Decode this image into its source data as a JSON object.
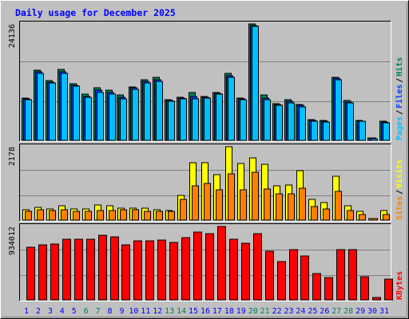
{
  "title": "Daily usage for December 2025",
  "chart_data": [
    {
      "type": "bar",
      "ylim": [
        0,
        24136
      ],
      "yticks": [
        24136
      ],
      "legend_separator": "/",
      "series": [
        {
          "name": "Hits",
          "color": "#00805c",
          "values": [
            8760,
            14550,
            12400,
            14710,
            11740,
            9590,
            10910,
            10410,
            9420,
            11070,
            12560,
            13060,
            8430,
            8930,
            9920,
            9090,
            9920,
            13890,
            8760,
            24136,
            9420,
            7600,
            8430,
            7440,
            4300,
            4130,
            13060,
            8270,
            4130,
            500,
            3970
          ]
        },
        {
          "name": "Files",
          "color": "#0040ff",
          "values": [
            8600,
            14220,
            12070,
            14220,
            11400,
            9090,
            10410,
            9920,
            8930,
            10910,
            12230,
            12560,
            8270,
            8760,
            9090,
            8930,
            9750,
            13390,
            8600,
            23800,
            8760,
            7440,
            8100,
            7270,
            4130,
            3970,
            12890,
            7930,
            3970,
            500,
            3800
          ]
        },
        {
          "name": "Pages",
          "color": "#00c0ff",
          "values": [
            8430,
            13890,
            11900,
            13890,
            11240,
            8930,
            9920,
            9590,
            8600,
            10580,
            11900,
            12230,
            8100,
            8600,
            8600,
            8760,
            9590,
            13060,
            8430,
            23640,
            8430,
            7270,
            7770,
            6940,
            3970,
            3800,
            12560,
            7770,
            3970,
            330,
            3640
          ]
        }
      ]
    },
    {
      "type": "bar",
      "ylim": [
        0,
        2178
      ],
      "yticks": [
        2178
      ],
      "legend_separator": "/",
      "series": [
        {
          "name": "Visits",
          "color": "#ffff00",
          "values": [
            308,
            379,
            331,
            426,
            331,
            331,
            450,
            426,
            355,
            355,
            355,
            308,
            284,
            734,
            1704,
            1704,
            1349,
            2178,
            1680,
            1846,
            1657,
            1018,
            1042,
            1468,
            615,
            521,
            1302,
            426,
            260,
            47,
            284
          ]
        },
        {
          "name": "Sites",
          "color": "#ff8000",
          "values": [
            260,
            308,
            284,
            308,
            260,
            260,
            284,
            284,
            308,
            308,
            260,
            260,
            260,
            615,
            1018,
            1089,
            899,
            1373,
            899,
            1420,
            923,
            781,
            781,
            947,
            402,
            331,
            852,
            284,
            166,
            47,
            166
          ]
        }
      ]
    },
    {
      "type": "bar",
      "ylim": [
        0,
        934012
      ],
      "yticks": [
        934012
      ],
      "categories": [
        "1",
        "2",
        "3",
        "4",
        "5",
        "6",
        "7",
        "8",
        "9",
        "10",
        "11",
        "12",
        "13",
        "14",
        "15",
        "16",
        "17",
        "18",
        "19",
        "20",
        "21",
        "22",
        "23",
        "24",
        "25",
        "26",
        "27",
        "28",
        "29",
        "30",
        "31"
      ],
      "category_colors": [
        "#0000ff",
        "#0000ff",
        "#0000ff",
        "#0000ff",
        "#0000ff",
        "#00805c",
        "#00805c",
        "#0000ff",
        "#0000ff",
        "#0000ff",
        "#0000ff",
        "#0000ff",
        "#00805c",
        "#00805c",
        "#0000ff",
        "#0000ff",
        "#0000ff",
        "#0000ff",
        "#0000ff",
        "#00805c",
        "#00805c",
        "#0000ff",
        "#0000ff",
        "#0000ff",
        "#0000ff",
        "#0000ff",
        "#00805c",
        "#00805c",
        "#0000ff",
        "#0000ff",
        "#0000ff"
      ],
      "series": [
        {
          "name": "KBytes",
          "color": "#ff0000",
          "values": [
            670030,
            700490,
            710640,
            771550,
            771550,
            771550,
            822310,
            802010,
            700490,
            751250,
            751250,
            761400,
            730940,
            791860,
            862920,
            842620,
            934012,
            771550,
            720790,
            842620,
            619270,
            487300,
            639580,
            558360,
            335020,
            284260,
            639580,
            639580,
            294410,
            30460,
            263950
          ]
        }
      ]
    }
  ]
}
